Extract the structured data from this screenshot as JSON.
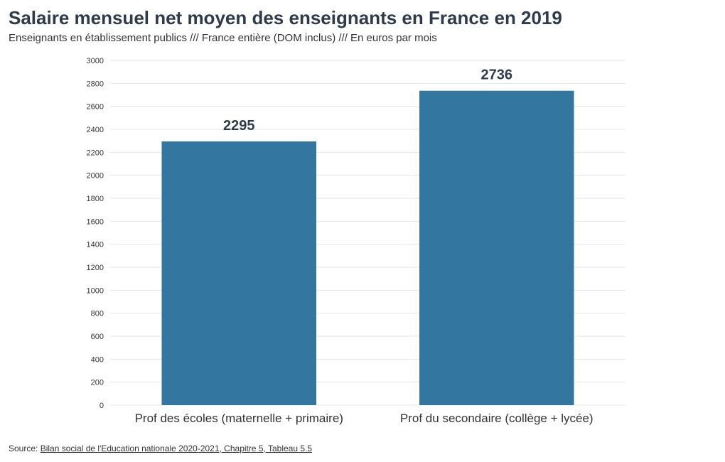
{
  "header": {
    "title": "Salaire mensuel net moyen des enseignants en France en 2019",
    "subtitle": "Enseignants en établissement publics /// France entière (DOM inclus) /// En euros par mois"
  },
  "footer": {
    "source_prefix": "Source: ",
    "source_link": "Bilan social de l'Education nationale 2020-2021, Chapitre 5, Tableau 5.5"
  },
  "chart_data": {
    "type": "bar",
    "title": "Salaire mensuel net moyen des enseignants en France en 2019",
    "subtitle": "Enseignants en établissement publics /// France entière (DOM inclus) /// En euros par mois",
    "categories": [
      "Prof des écoles (maternelle + primaire)",
      "Prof du secondaire (collège + lycée)"
    ],
    "values": [
      2295,
      2736
    ],
    "data_labels": [
      "2295",
      "2736"
    ],
    "xlabel": "",
    "ylabel": "",
    "ylim": [
      0,
      3000
    ],
    "yticks": [
      0,
      200,
      400,
      600,
      800,
      1000,
      1200,
      1400,
      1600,
      1800,
      2000,
      2200,
      2400,
      2600,
      2800,
      3000
    ],
    "grid": true,
    "legend": "none",
    "bar_color": "#33769f"
  }
}
